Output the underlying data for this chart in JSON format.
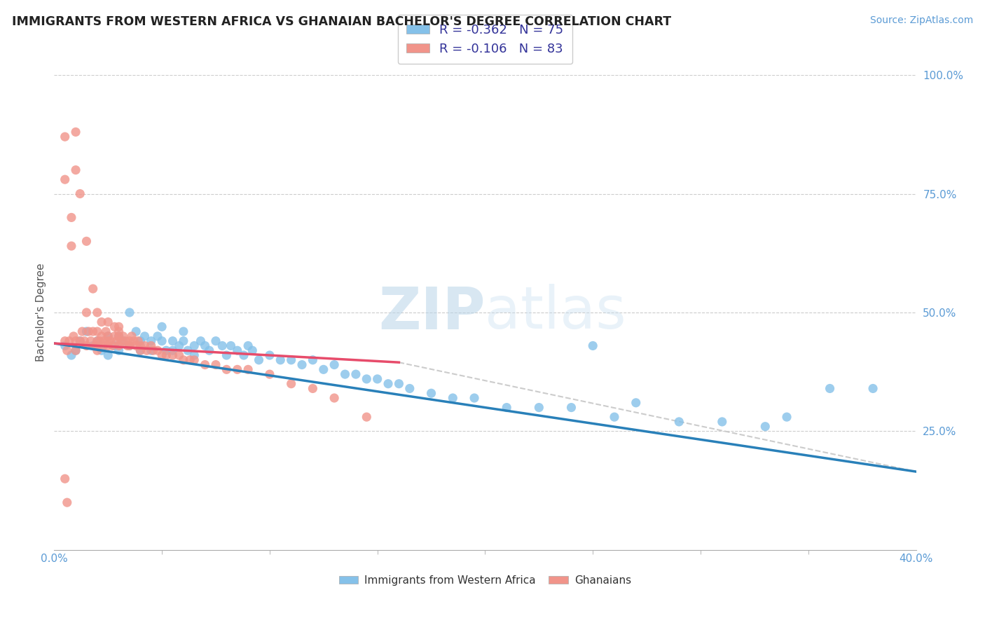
{
  "title": "IMMIGRANTS FROM WESTERN AFRICA VS GHANAIAN BACHELOR'S DEGREE CORRELATION CHART",
  "source_text": "Source: ZipAtlas.com",
  "ylabel": "Bachelor's Degree",
  "xlim": [
    0.0,
    0.4
  ],
  "ylim": [
    0.0,
    1.0
  ],
  "legend_r1": "-0.362",
  "legend_n1": "75",
  "legend_r2": "-0.106",
  "legend_n2": "83",
  "color_blue": "#85c1e9",
  "color_pink": "#f1948a",
  "color_line_blue": "#2980b9",
  "color_line_pink": "#e74c6b",
  "color_line_dashed": "#cccccc",
  "watermark_color": "#d6eaf8",
  "blue_x": [
    0.005,
    0.008,
    0.01,
    0.012,
    0.015,
    0.018,
    0.02,
    0.022,
    0.025,
    0.025,
    0.028,
    0.03,
    0.03,
    0.032,
    0.035,
    0.035,
    0.038,
    0.04,
    0.04,
    0.042,
    0.045,
    0.045,
    0.048,
    0.05,
    0.05,
    0.052,
    0.055,
    0.055,
    0.058,
    0.06,
    0.06,
    0.062,
    0.065,
    0.065,
    0.068,
    0.07,
    0.072,
    0.075,
    0.078,
    0.08,
    0.082,
    0.085,
    0.088,
    0.09,
    0.092,
    0.095,
    0.1,
    0.105,
    0.11,
    0.115,
    0.12,
    0.125,
    0.13,
    0.135,
    0.14,
    0.145,
    0.15,
    0.155,
    0.16,
    0.165,
    0.175,
    0.185,
    0.195,
    0.21,
    0.225,
    0.24,
    0.26,
    0.29,
    0.31,
    0.33,
    0.36,
    0.38,
    0.25,
    0.27,
    0.34
  ],
  "blue_y": [
    0.43,
    0.41,
    0.42,
    0.44,
    0.46,
    0.43,
    0.44,
    0.42,
    0.45,
    0.41,
    0.43,
    0.45,
    0.42,
    0.44,
    0.5,
    0.43,
    0.46,
    0.44,
    0.42,
    0.45,
    0.44,
    0.42,
    0.45,
    0.47,
    0.44,
    0.42,
    0.44,
    0.42,
    0.43,
    0.46,
    0.44,
    0.42,
    0.43,
    0.41,
    0.44,
    0.43,
    0.42,
    0.44,
    0.43,
    0.41,
    0.43,
    0.42,
    0.41,
    0.43,
    0.42,
    0.4,
    0.41,
    0.4,
    0.4,
    0.39,
    0.4,
    0.38,
    0.39,
    0.37,
    0.37,
    0.36,
    0.36,
    0.35,
    0.35,
    0.34,
    0.33,
    0.32,
    0.32,
    0.3,
    0.3,
    0.3,
    0.28,
    0.27,
    0.27,
    0.26,
    0.34,
    0.34,
    0.43,
    0.31,
    0.28
  ],
  "pink_x": [
    0.005,
    0.005,
    0.005,
    0.006,
    0.007,
    0.008,
    0.008,
    0.009,
    0.01,
    0.01,
    0.01,
    0.01,
    0.012,
    0.012,
    0.013,
    0.014,
    0.015,
    0.015,
    0.015,
    0.016,
    0.017,
    0.018,
    0.018,
    0.019,
    0.02,
    0.02,
    0.02,
    0.02,
    0.021,
    0.022,
    0.022,
    0.023,
    0.023,
    0.024,
    0.025,
    0.025,
    0.025,
    0.025,
    0.026,
    0.027,
    0.028,
    0.028,
    0.029,
    0.03,
    0.03,
    0.03,
    0.03,
    0.031,
    0.032,
    0.033,
    0.034,
    0.035,
    0.035,
    0.036,
    0.037,
    0.038,
    0.039,
    0.04,
    0.04,
    0.042,
    0.043,
    0.045,
    0.046,
    0.048,
    0.05,
    0.052,
    0.055,
    0.058,
    0.06,
    0.063,
    0.065,
    0.07,
    0.075,
    0.08,
    0.085,
    0.09,
    0.1,
    0.11,
    0.12,
    0.13,
    0.005,
    0.006,
    0.145
  ],
  "pink_y": [
    0.44,
    0.87,
    0.78,
    0.42,
    0.44,
    0.7,
    0.64,
    0.45,
    0.88,
    0.8,
    0.44,
    0.42,
    0.75,
    0.44,
    0.46,
    0.44,
    0.65,
    0.5,
    0.43,
    0.46,
    0.44,
    0.55,
    0.46,
    0.43,
    0.5,
    0.46,
    0.44,
    0.42,
    0.44,
    0.48,
    0.45,
    0.44,
    0.43,
    0.46,
    0.48,
    0.45,
    0.44,
    0.43,
    0.44,
    0.43,
    0.47,
    0.45,
    0.44,
    0.47,
    0.46,
    0.45,
    0.43,
    0.44,
    0.45,
    0.44,
    0.43,
    0.44,
    0.43,
    0.45,
    0.44,
    0.43,
    0.44,
    0.43,
    0.42,
    0.43,
    0.42,
    0.43,
    0.42,
    0.42,
    0.41,
    0.41,
    0.41,
    0.41,
    0.4,
    0.4,
    0.4,
    0.39,
    0.39,
    0.38,
    0.38,
    0.38,
    0.37,
    0.35,
    0.34,
    0.32,
    0.15,
    0.1,
    0.28
  ],
  "blue_line_x": [
    0.0,
    0.4
  ],
  "blue_line_y": [
    0.435,
    0.165
  ],
  "pink_line_x": [
    0.0,
    0.16
  ],
  "pink_line_y": [
    0.435,
    0.395
  ],
  "dashed_line_x": [
    0.16,
    0.4
  ],
  "dashed_line_y": [
    0.395,
    0.165
  ]
}
